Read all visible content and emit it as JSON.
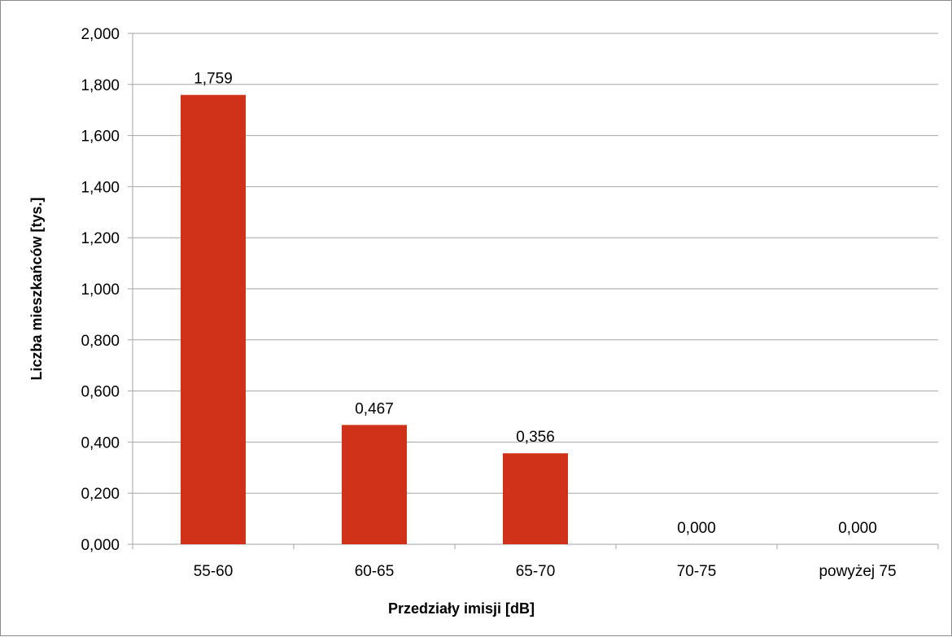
{
  "chart_data": {
    "type": "bar",
    "categories": [
      "55-60",
      "60-65",
      "65-70",
      "70-75",
      "powyżej 75"
    ],
    "values": [
      1.759,
      0.467,
      0.356,
      0.0,
      0.0
    ],
    "value_labels": [
      "1,759",
      "0,467",
      "0,356",
      "0,000",
      "0,000"
    ],
    "xlabel": "Przedziały imisji [dB]",
    "ylabel": "Liczba mieszkańców [tys.]",
    "ylim": [
      0,
      2.0
    ],
    "yticks": [
      0.0,
      0.2,
      0.4,
      0.6,
      0.8,
      1.0,
      1.2,
      1.4,
      1.6,
      1.8,
      2.0
    ],
    "ytick_labels": [
      "0,000",
      "0,200",
      "0,400",
      "0,600",
      "0,800",
      "1,000",
      "1,200",
      "1,400",
      "1,600",
      "1,800",
      "2,000"
    ],
    "grid": true,
    "legend": "none",
    "bar_color": "#d03119",
    "grid_color": "#a6a6a6"
  }
}
